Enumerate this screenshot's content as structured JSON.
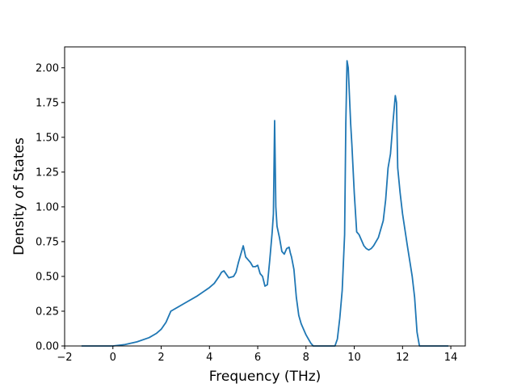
{
  "chart_data": {
    "type": "line",
    "title": "",
    "xlabel": "Frequency (THz)",
    "ylabel": "Density of States",
    "xlim": [
      -2,
      14.6
    ],
    "ylim": [
      0,
      2.15
    ],
    "grid": false,
    "legend": "none",
    "line_color": "#1f77b4",
    "xticks": [
      {
        "value": -2,
        "label": "−2"
      },
      {
        "value": 0,
        "label": "0"
      },
      {
        "value": 2,
        "label": "2"
      },
      {
        "value": 4,
        "label": "4"
      },
      {
        "value": 6,
        "label": "6"
      },
      {
        "value": 8,
        "label": "8"
      },
      {
        "value": 10,
        "label": "10"
      },
      {
        "value": 12,
        "label": "12"
      },
      {
        "value": 14,
        "label": "14"
      }
    ],
    "yticks": [
      {
        "value": 0,
        "label": "0.00"
      },
      {
        "value": 0.25,
        "label": "0.25"
      },
      {
        "value": 0.5,
        "label": "0.50"
      },
      {
        "value": 0.75,
        "label": "0.75"
      },
      {
        "value": 1.0,
        "label": "1.00"
      },
      {
        "value": 1.25,
        "label": "1.25"
      },
      {
        "value": 1.5,
        "label": "1.50"
      },
      {
        "value": 1.75,
        "label": "1.75"
      },
      {
        "value": 2.0,
        "label": "2.00"
      }
    ],
    "series": [
      {
        "x": [
          -1.3,
          -0.5,
          0.0,
          0.5,
          1.0,
          1.5,
          1.8,
          2.0,
          2.2,
          2.3,
          2.4,
          2.5,
          3.0,
          3.5,
          4.0,
          4.2,
          4.4,
          4.5,
          4.6,
          4.8,
          5.0,
          5.1,
          5.2,
          5.3,
          5.4,
          5.5,
          5.6,
          5.7,
          5.8,
          5.9,
          6.0,
          6.1,
          6.2,
          6.3,
          6.4,
          6.5,
          6.6,
          6.65,
          6.7,
          6.75,
          6.8,
          6.9,
          7.0,
          7.1,
          7.2,
          7.3,
          7.35,
          7.4,
          7.5,
          7.6,
          7.7,
          7.8,
          8.0,
          8.2,
          8.3,
          8.5,
          9.0,
          9.2,
          9.3,
          9.4,
          9.5,
          9.6,
          9.65,
          9.7,
          9.75,
          9.8,
          9.85,
          9.9,
          10.0,
          10.1,
          10.2,
          10.3,
          10.4,
          10.5,
          10.6,
          10.7,
          10.8,
          11.0,
          11.2,
          11.3,
          11.4,
          11.5,
          11.6,
          11.7,
          11.75,
          11.8,
          11.9,
          12.0,
          12.2,
          12.4,
          12.5,
          12.6,
          12.7,
          13.0,
          13.5,
          13.9
        ],
        "y": [
          0,
          0,
          0.0,
          0.01,
          0.03,
          0.06,
          0.09,
          0.12,
          0.17,
          0.21,
          0.25,
          0.26,
          0.31,
          0.36,
          0.42,
          0.45,
          0.5,
          0.53,
          0.54,
          0.49,
          0.5,
          0.53,
          0.6,
          0.66,
          0.72,
          0.64,
          0.62,
          0.6,
          0.57,
          0.57,
          0.58,
          0.52,
          0.5,
          0.43,
          0.44,
          0.62,
          0.82,
          0.95,
          1.62,
          1.0,
          0.86,
          0.78,
          0.68,
          0.66,
          0.7,
          0.71,
          0.67,
          0.64,
          0.55,
          0.35,
          0.22,
          0.16,
          0.08,
          0.02,
          0.0,
          0.0,
          0.0,
          0.0,
          0.05,
          0.2,
          0.4,
          0.8,
          1.6,
          2.05,
          2.0,
          1.8,
          1.6,
          1.45,
          1.1,
          0.82,
          0.8,
          0.76,
          0.72,
          0.7,
          0.69,
          0.7,
          0.72,
          0.78,
          0.9,
          1.05,
          1.28,
          1.38,
          1.6,
          1.8,
          1.75,
          1.28,
          1.1,
          0.95,
          0.72,
          0.5,
          0.35,
          0.1,
          0.0,
          0.0,
          0.0,
          0.0
        ]
      }
    ]
  }
}
